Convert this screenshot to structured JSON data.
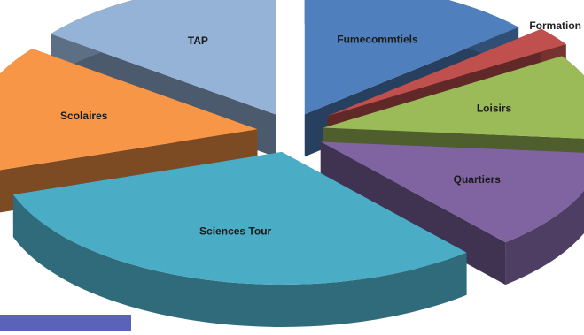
{
  "chart_data": {
    "type": "pie",
    "style": "3d-exploded",
    "title": "",
    "slices": [
      {
        "label": "Fumecommtiels",
        "value": 13.6,
        "color": "#4f80bd"
      },
      {
        "label": "Formation",
        "value": 2.3,
        "color": "#c0504d"
      },
      {
        "label": "Loisirs",
        "value": 10.5,
        "color": "#9bbb59"
      },
      {
        "label": "Quartiers",
        "value": 12.3,
        "color": "#8064a2"
      },
      {
        "label": "Sciences Tour",
        "value": 31.1,
        "color": "#4bacc6"
      },
      {
        "label": "Scolaires",
        "value": 15.6,
        "color": "#f79646"
      },
      {
        "label": "TAP",
        "value": 14.6,
        "color": "#95b3d7"
      }
    ]
  },
  "colors": {
    "corner_bar": "#5b63b8",
    "label_dark": "#1a1a1a"
  }
}
